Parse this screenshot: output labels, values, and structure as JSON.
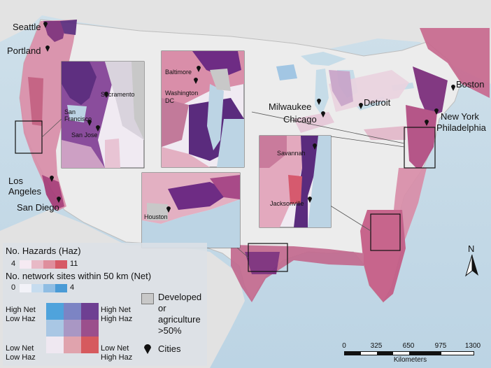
{
  "map": {
    "cities": {
      "seattle": "Seattle",
      "portland": "Portland",
      "los_angeles_1": "Los",
      "los_angeles_2": "Angeles",
      "san_diego": "San Diego",
      "milwaukee": "Milwaukee",
      "chicago": "Chicago",
      "detroit": "Detroit",
      "boston": "Boston",
      "new_york": "New York",
      "philadelphia": "Philadelphia"
    },
    "insets": {
      "sf_bay": {
        "san_francisco_1": "San",
        "san_francisco_2": "Francisco",
        "san_jose": "San Jose",
        "sacramento": "Sacramento"
      },
      "chesapeake": {
        "baltimore": "Baltimore",
        "washington_1": "Washington",
        "washington_2": "DC"
      },
      "georgia_florida": {
        "savannah": "Savannah",
        "jacksonville": "Jacksonville"
      },
      "texas": {
        "houston": "Houston"
      }
    }
  },
  "legend": {
    "haz_title": "No. Hazards (Haz)",
    "haz_min": "4",
    "haz_max": "11",
    "net_title": "No. network sites within 50 km (Net)",
    "net_min": "0",
    "net_max": "4",
    "developed_1": "Developed",
    "developed_2": "or",
    "developed_3": "agriculture",
    "developed_4": ">50%",
    "cities": "Cities",
    "high_net_low_haz_1": "High Net",
    "high_net_low_haz_2": "Low Haz",
    "high_net_high_haz_1": "High Net",
    "high_net_high_haz_2": "High Haz",
    "low_net_low_haz_1": "Low Net",
    "low_net_low_haz_2": "Low Haz",
    "low_net_high_haz_1": "Low Net",
    "low_net_high_haz_2": "High Haz",
    "colors": {
      "haz_ramp": [
        "#f5eaf2",
        "#e8b9c6",
        "#df8e9d",
        "#d65a66"
      ],
      "net_ramp": [
        "#f2f2f8",
        "#c6dcef",
        "#8fbde3",
        "#4a9bd6"
      ],
      "bivariate": [
        [
          "#4fa3dc",
          "#7c84c4",
          "#6e3f92"
        ],
        [
          "#a9c7e4",
          "#a997c4",
          "#9b4f8c"
        ],
        [
          "#efe8f1",
          "#e0a3ad",
          "#d65a5e"
        ]
      ],
      "developed": "#c8c8c8"
    }
  },
  "scalebar": {
    "ticks": [
      "0",
      "325",
      "650",
      "975",
      "1300"
    ],
    "unit": "Kilometers"
  },
  "north_arrow": "N"
}
